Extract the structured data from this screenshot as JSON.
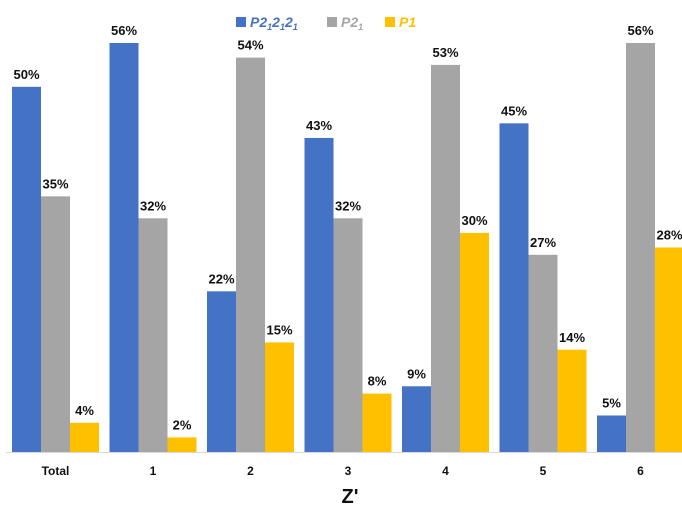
{
  "chart_data": {
    "type": "bar",
    "categories": [
      "Total",
      "1",
      "2",
      "3",
      "4",
      "5",
      "6"
    ],
    "series": [
      {
        "name": "P2₁₂₁₂₁",
        "legend_parts": [
          "P2",
          "1",
          "2",
          "1",
          "2",
          "1"
        ],
        "color": "#4472C4",
        "values": [
          50,
          56,
          22,
          43,
          9,
          45,
          5
        ],
        "labels": [
          "50%",
          "56%",
          "22%",
          "43%",
          "9%",
          "45%",
          "5%"
        ]
      },
      {
        "name": "P2₁",
        "legend_parts": [
          "P2",
          "1"
        ],
        "color": "#A5A5A5",
        "values": [
          35,
          32,
          54,
          32,
          53,
          27,
          56
        ],
        "labels": [
          "35%",
          "32%",
          "54%",
          "32%",
          "53%",
          "27%",
          "56%"
        ]
      },
      {
        "name": "P1",
        "legend_parts": [
          "P1"
        ],
        "color": "#FFC000",
        "values": [
          4,
          2,
          15,
          8,
          30,
          14,
          28
        ],
        "labels": [
          "4%",
          "2%",
          "15%",
          "8%",
          "30%",
          "14%",
          "28%"
        ]
      }
    ],
    "title": "",
    "xlabel": "Z'",
    "ylabel": "",
    "ylim": [
      0,
      56
    ],
    "grid": false,
    "legend_position": "top-center",
    "axis_color": "#D9D9D9"
  }
}
